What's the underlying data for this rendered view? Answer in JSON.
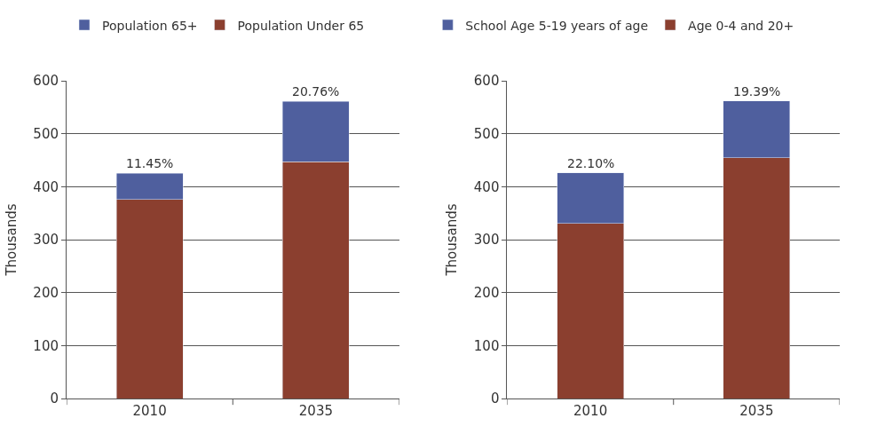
{
  "chart_data": [
    {
      "type": "bar",
      "stacked": true,
      "categories": [
        "2010",
        "2035"
      ],
      "ylabel": "Thousands",
      "ylim": [
        0,
        600
      ],
      "yticks": [
        0,
        100,
        200,
        300,
        400,
        500,
        600
      ],
      "grid": "y",
      "legend": "top left",
      "series": [
        {
          "name": "Population Under 65",
          "color": "#8b3f2f",
          "values": [
            376,
            447
          ]
        },
        {
          "name": "Population 65+",
          "color": "#4f5f9e",
          "values": [
            49,
            114
          ]
        }
      ],
      "annotations": [
        {
          "text": "11.45%",
          "x": "2010",
          "y": 425
        },
        {
          "text": "20.76%",
          "x": "2035",
          "y": 561
        }
      ]
    },
    {
      "type": "bar",
      "stacked": true,
      "categories": [
        "2010",
        "2035"
      ],
      "ylabel": "Thousands",
      "ylim": [
        0,
        600
      ],
      "yticks": [
        0,
        100,
        200,
        300,
        400,
        500,
        600
      ],
      "grid": "y",
      "legend": "top left",
      "series": [
        {
          "name": "Age 0-4 and 20+",
          "color": "#8b3f2f",
          "values": [
            331,
            455
          ]
        },
        {
          "name": "School Age 5-19 years of age",
          "color": "#4f5f9e",
          "values": [
            95,
            107
          ]
        }
      ],
      "annotations": [
        {
          "text": "22.10%",
          "x": "2010",
          "y": 426
        },
        {
          "text": "19.39%",
          "x": "2035",
          "y": 562
        }
      ]
    }
  ]
}
